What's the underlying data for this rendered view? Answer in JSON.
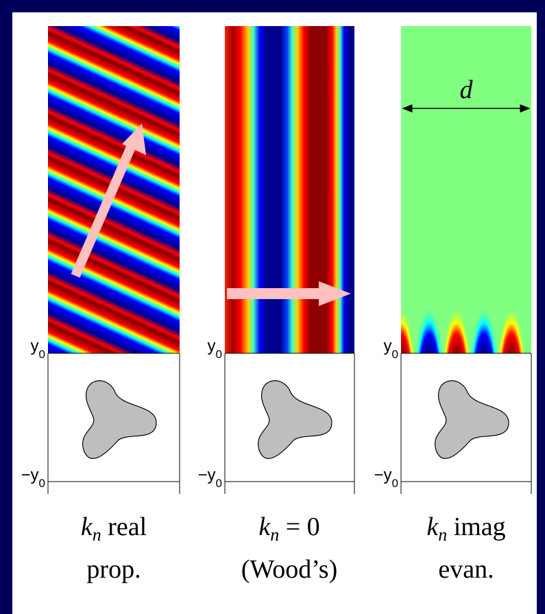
{
  "panels": [
    {
      "y0": {
        "base": "y",
        "sub": "0"
      },
      "minus_y0": {
        "base": "−y",
        "sub": "0"
      },
      "caption": {
        "k": "k",
        "n": "n",
        "rest": " real",
        "line2": "prop."
      }
    },
    {
      "y0": {
        "base": "y",
        "sub": "0"
      },
      "minus_y0": {
        "base": "−y",
        "sub": "0"
      },
      "caption": {
        "k": "k",
        "n": "n",
        "rest": " = 0",
        "line2": "(Wood’s)"
      }
    },
    {
      "y0": {
        "base": "y",
        "sub": "0"
      },
      "minus_y0": {
        "base": "−y",
        "sub": "0"
      },
      "caption": {
        "k": "k",
        "n": "n",
        "rest": " imag",
        "line2": "evan."
      },
      "width_label": "d"
    }
  ]
}
